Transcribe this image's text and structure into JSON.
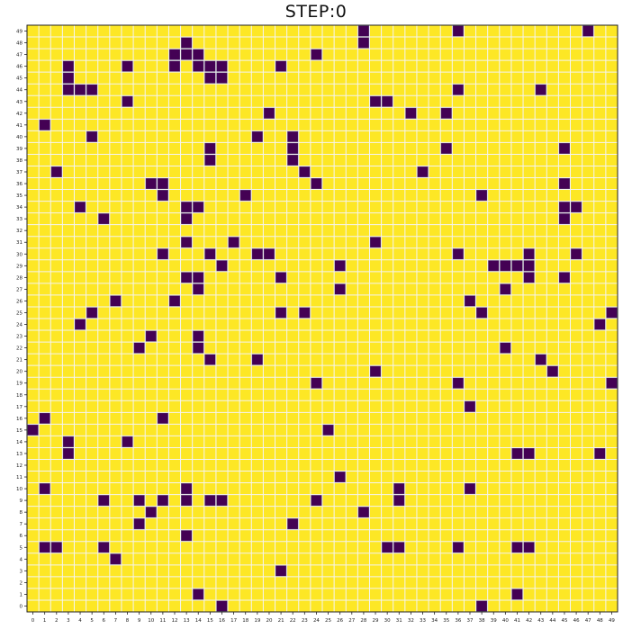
{
  "title": "STEP:0",
  "grid": {
    "columns": 50,
    "rows": 50,
    "x_tick_labels": [
      "0",
      "1",
      "2",
      "3",
      "4",
      "5",
      "6",
      "7",
      "8",
      "9",
      "10",
      "11",
      "12",
      "13",
      "14",
      "15",
      "16",
      "17",
      "18",
      "19",
      "20",
      "21",
      "22",
      "23",
      "24",
      "25",
      "26",
      "27",
      "28",
      "29",
      "30",
      "31",
      "32",
      "33",
      "34",
      "35",
      "36",
      "37",
      "38",
      "39",
      "40",
      "41",
      "42",
      "43",
      "44",
      "45",
      "46",
      "47",
      "48",
      "49"
    ],
    "y_tick_labels": [
      "0",
      "1",
      "2",
      "3",
      "4",
      "5",
      "6",
      "7",
      "8",
      "9",
      "10",
      "11",
      "12",
      "13",
      "14",
      "15",
      "16",
      "17",
      "18",
      "19",
      "20",
      "21",
      "22",
      "23",
      "24",
      "25",
      "26",
      "27",
      "28",
      "29",
      "30",
      "31",
      "32",
      "33",
      "34",
      "35",
      "36",
      "37",
      "38",
      "39",
      "40",
      "41",
      "42",
      "43",
      "44",
      "45",
      "46",
      "47",
      "48",
      "49"
    ],
    "dead_color": "#fde725",
    "alive_color": "#440154",
    "grid_line_color": "#f4f4f4",
    "live_cells": [
      [
        28,
        49
      ],
      [
        36,
        49
      ],
      [
        47,
        49
      ],
      [
        13,
        48
      ],
      [
        28,
        48
      ],
      [
        12,
        47
      ],
      [
        13,
        47
      ],
      [
        14,
        47
      ],
      [
        24,
        47
      ],
      [
        3,
        46
      ],
      [
        8,
        46
      ],
      [
        12,
        46
      ],
      [
        14,
        46
      ],
      [
        15,
        46
      ],
      [
        16,
        46
      ],
      [
        21,
        46
      ],
      [
        3,
        45
      ],
      [
        15,
        45
      ],
      [
        16,
        45
      ],
      [
        3,
        44
      ],
      [
        4,
        44
      ],
      [
        5,
        44
      ],
      [
        36,
        44
      ],
      [
        43,
        44
      ],
      [
        8,
        43
      ],
      [
        29,
        43
      ],
      [
        30,
        43
      ],
      [
        20,
        42
      ],
      [
        32,
        42
      ],
      [
        35,
        42
      ],
      [
        1,
        41
      ],
      [
        5,
        40
      ],
      [
        19,
        40
      ],
      [
        22,
        40
      ],
      [
        15,
        39
      ],
      [
        22,
        39
      ],
      [
        35,
        39
      ],
      [
        45,
        39
      ],
      [
        15,
        38
      ],
      [
        22,
        38
      ],
      [
        2,
        37
      ],
      [
        23,
        37
      ],
      [
        33,
        37
      ],
      [
        10,
        36
      ],
      [
        11,
        36
      ],
      [
        24,
        36
      ],
      [
        45,
        36
      ],
      [
        11,
        35
      ],
      [
        18,
        35
      ],
      [
        38,
        35
      ],
      [
        4,
        34
      ],
      [
        13,
        34
      ],
      [
        14,
        34
      ],
      [
        45,
        34
      ],
      [
        46,
        34
      ],
      [
        6,
        33
      ],
      [
        13,
        33
      ],
      [
        45,
        33
      ],
      [
        13,
        31
      ],
      [
        17,
        31
      ],
      [
        29,
        31
      ],
      [
        11,
        30
      ],
      [
        15,
        30
      ],
      [
        19,
        30
      ],
      [
        20,
        30
      ],
      [
        36,
        30
      ],
      [
        42,
        30
      ],
      [
        46,
        30
      ],
      [
        16,
        29
      ],
      [
        26,
        29
      ],
      [
        39,
        29
      ],
      [
        40,
        29
      ],
      [
        41,
        29
      ],
      [
        42,
        29
      ],
      [
        13,
        28
      ],
      [
        14,
        28
      ],
      [
        21,
        28
      ],
      [
        42,
        28
      ],
      [
        45,
        28
      ],
      [
        14,
        27
      ],
      [
        26,
        27
      ],
      [
        40,
        27
      ],
      [
        7,
        26
      ],
      [
        12,
        26
      ],
      [
        37,
        26
      ],
      [
        5,
        25
      ],
      [
        21,
        25
      ],
      [
        23,
        25
      ],
      [
        38,
        25
      ],
      [
        49,
        25
      ],
      [
        4,
        24
      ],
      [
        48,
        24
      ],
      [
        10,
        23
      ],
      [
        14,
        23
      ],
      [
        9,
        22
      ],
      [
        14,
        22
      ],
      [
        40,
        22
      ],
      [
        15,
        21
      ],
      [
        19,
        21
      ],
      [
        43,
        21
      ],
      [
        29,
        20
      ],
      [
        44,
        20
      ],
      [
        24,
        19
      ],
      [
        36,
        19
      ],
      [
        49,
        19
      ],
      [
        37,
        17
      ],
      [
        1,
        16
      ],
      [
        11,
        16
      ],
      [
        0,
        15
      ],
      [
        25,
        15
      ],
      [
        3,
        14
      ],
      [
        8,
        14
      ],
      [
        3,
        13
      ],
      [
        41,
        13
      ],
      [
        42,
        13
      ],
      [
        48,
        13
      ],
      [
        26,
        11
      ],
      [
        1,
        10
      ],
      [
        13,
        10
      ],
      [
        31,
        10
      ],
      [
        37,
        10
      ],
      [
        6,
        9
      ],
      [
        9,
        9
      ],
      [
        11,
        9
      ],
      [
        13,
        9
      ],
      [
        15,
        9
      ],
      [
        16,
        9
      ],
      [
        24,
        9
      ],
      [
        31,
        9
      ],
      [
        10,
        8
      ],
      [
        28,
        8
      ],
      [
        9,
        7
      ],
      [
        22,
        7
      ],
      [
        13,
        6
      ],
      [
        1,
        5
      ],
      [
        2,
        5
      ],
      [
        6,
        5
      ],
      [
        30,
        5
      ],
      [
        31,
        5
      ],
      [
        36,
        5
      ],
      [
        41,
        5
      ],
      [
        42,
        5
      ],
      [
        7,
        4
      ],
      [
        21,
        3
      ],
      [
        14,
        1
      ],
      [
        41,
        1
      ],
      [
        16,
        0
      ],
      [
        38,
        0
      ]
    ]
  }
}
